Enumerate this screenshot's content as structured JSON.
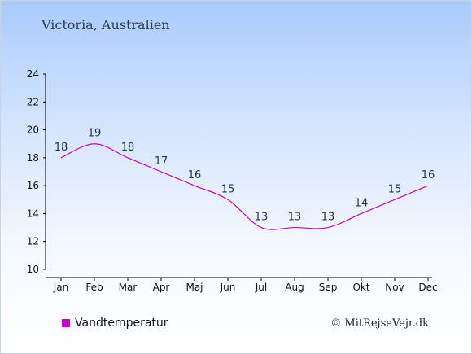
{
  "title": "Victoria, Australien",
  "credit": "© MitRejseVejr.dk",
  "chart_data": {
    "type": "line",
    "categories": [
      "Jan",
      "Feb",
      "Mar",
      "Apr",
      "Maj",
      "Jun",
      "Jul",
      "Aug",
      "Sep",
      "Okt",
      "Nov",
      "Dec"
    ],
    "series": [
      {
        "name": "Vandtemperatur",
        "values": [
          18,
          19,
          18,
          17,
          16,
          15,
          13,
          13,
          13,
          14,
          15,
          16
        ],
        "color": "#cc00cc"
      }
    ],
    "ylim": [
      10,
      24
    ],
    "yticks": [
      10,
      12,
      14,
      16,
      18,
      20,
      22,
      24
    ],
    "xlabel": "",
    "ylabel": "",
    "grid": false,
    "legend": "bottom-left"
  }
}
